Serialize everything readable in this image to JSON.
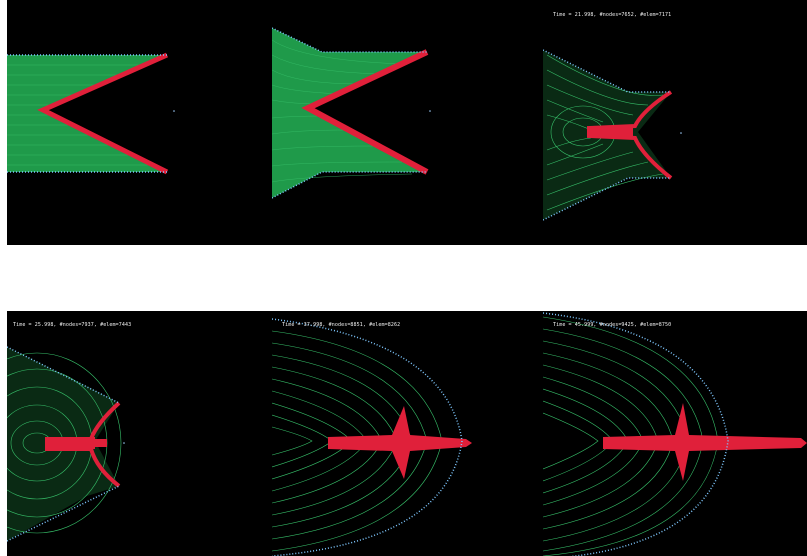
{
  "colors": {
    "background": "#000000",
    "mesh_fill": "#1f9a4a",
    "mesh_line": "#37c06a",
    "boundary_nodes": "#7fc8ff",
    "refined_region": "#e0203a"
  },
  "panels": [
    {
      "id": "frame-1",
      "caption": ""
    },
    {
      "id": "frame-2",
      "caption": ""
    },
    {
      "id": "frame-3",
      "caption": "Time =     21.998, #nodes=7652, #elem=7171"
    },
    {
      "id": "frame-4",
      "caption": "Time =     25.998, #nodes=7937, #elem=7443"
    },
    {
      "id": "frame-5",
      "caption": "Time =     37.998, #nodes=8851, #elem=8262"
    },
    {
      "id": "frame-6",
      "caption": "Time =     45.999, #nodes=9425, #elem=8750"
    }
  ]
}
